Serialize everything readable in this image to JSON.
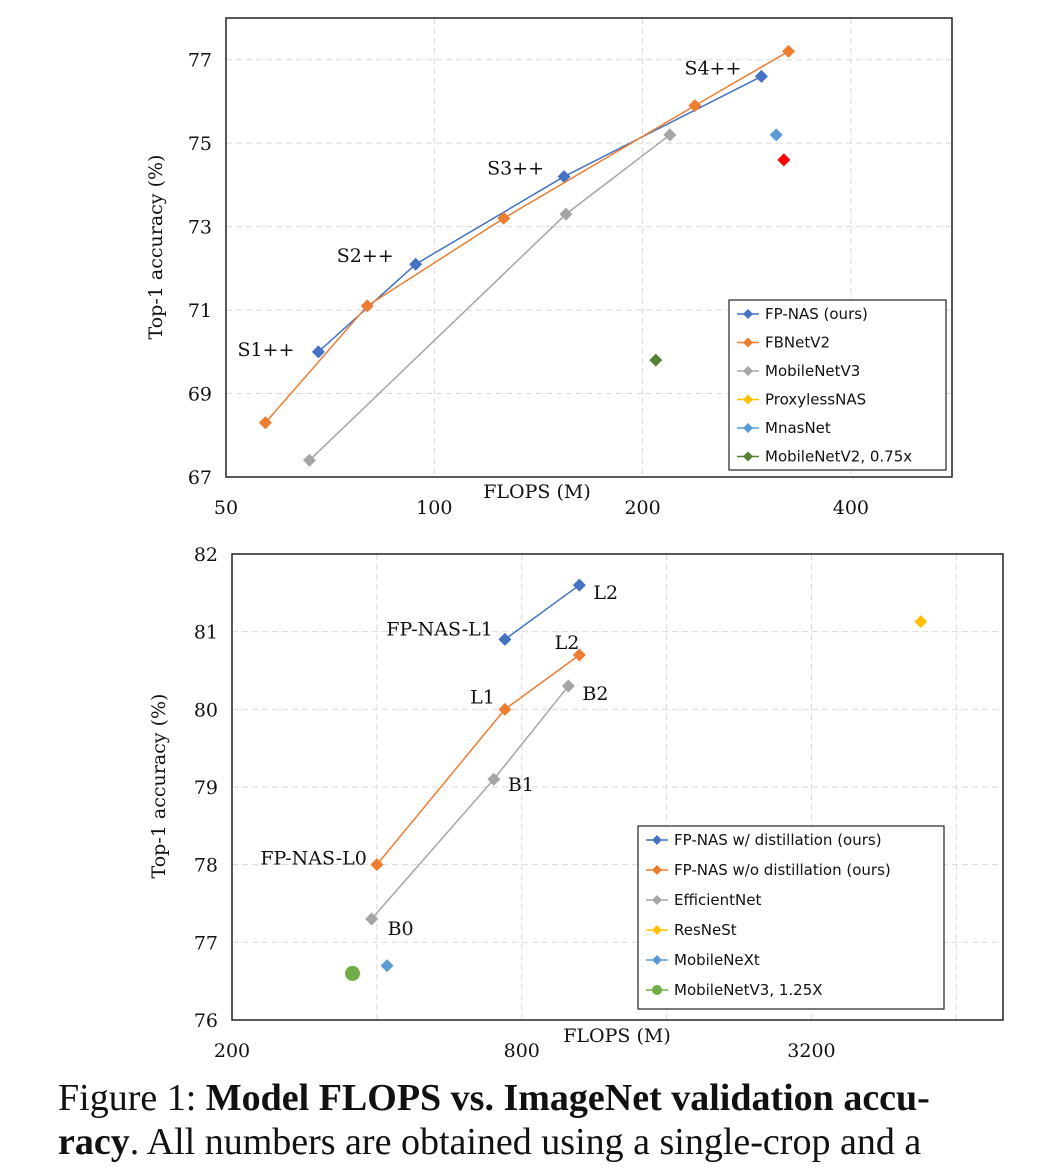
{
  "caption": {
    "prefix": "Figure 1: ",
    "bold_title": "Model FLOPS vs.  ImageNet validation accu-",
    "bold_cont": "racy",
    "rest_line2": ".  All numbers are obtained using a single-crop and a"
  },
  "chart_data": [
    {
      "type": "line",
      "xscale": "log",
      "xlabel": "FLOPS (M)",
      "ylabel": "Top-1 accuracy (%)",
      "xlim": [
        50,
        560
      ],
      "ylim": [
        67,
        78
      ],
      "xticks": [
        50,
        100,
        200,
        400
      ],
      "yticks": [
        67,
        69,
        71,
        73,
        75,
        77
      ],
      "grid": true,
      "legend_position": "bottom-right",
      "series": [
        {
          "name": "FP-NAS (ours)",
          "color": "#4472C4",
          "line": true,
          "x": [
            68,
            94,
            154,
            297
          ],
          "y": [
            70.0,
            72.1,
            74.2,
            76.6
          ],
          "labels": [
            "S1++",
            "S2++",
            "S3++",
            "S4++"
          ]
        },
        {
          "name": "FBNetV2",
          "color": "#ED7D31",
          "line": true,
          "x": [
            57,
            80,
            126,
            238,
            325
          ],
          "y": [
            68.3,
            71.1,
            73.2,
            75.9,
            77.2
          ]
        },
        {
          "name": "MobileNetV3",
          "color": "#A5A5A5",
          "line": true,
          "x": [
            66,
            155,
            219
          ],
          "y": [
            67.4,
            73.3,
            75.2
          ]
        },
        {
          "name": "ProxylessNAS",
          "color": "#FF0000",
          "line": false,
          "x": [
            320
          ],
          "y": [
            74.6
          ]
        },
        {
          "name": "MnasNet",
          "color": "#5B9BD5",
          "line": false,
          "x": [
            312
          ],
          "y": [
            75.2
          ]
        },
        {
          "name": "MobileNetV2, 0.75x",
          "color": "#548235",
          "line": false,
          "x": [
            209
          ],
          "y": [
            69.8
          ]
        }
      ],
      "legend_colors": [
        "#4472C4",
        "#ED7D31",
        "#A5A5A5",
        "#FFC000",
        "#5B9BD5",
        "#548235"
      ]
    },
    {
      "type": "line",
      "xscale": "log",
      "xlabel": "FLOPS (M)",
      "ylabel": "Top-1 accuracy (%)",
      "xlim": [
        200,
        8000
      ],
      "ylim": [
        76,
        82
      ],
      "xticks": [
        200,
        800,
        3200
      ],
      "yticks": [
        76,
        77,
        78,
        79,
        80,
        81,
        82
      ],
      "grid": true,
      "legend_position": "bottom-right",
      "series": [
        {
          "name": "FP-NAS  w/ distillation (ours)",
          "color": "#4472C4",
          "line": true,
          "marker": "diamond",
          "x": [
            738,
            1054
          ],
          "y": [
            80.9,
            81.6
          ],
          "labels": [
            "FP-NAS-L1",
            "L2"
          ]
        },
        {
          "name": "FP-NAS w/o distillation  (ours)",
          "color": "#ED7D31",
          "line": true,
          "marker": "diamond",
          "x": [
            400,
            738,
            1054
          ],
          "y": [
            78.0,
            80.0,
            80.7
          ],
          "labels": [
            "FP-NAS-L0",
            "L1",
            "L2"
          ]
        },
        {
          "name": "EfficientNet",
          "color": "#A5A5A5",
          "line": true,
          "marker": "diamond",
          "x": [
            390,
            700,
            1000
          ],
          "y": [
            77.3,
            79.1,
            80.3
          ],
          "labels": [
            "B0",
            "B1",
            "B2"
          ]
        },
        {
          "name": "ResNeSt",
          "color": "#FFC000",
          "line": false,
          "marker": "diamond",
          "x": [
            5400
          ],
          "y": [
            81.13
          ]
        },
        {
          "name": "MobileNeXt",
          "color": "#5B9BD5",
          "line": false,
          "marker": "diamond",
          "x": [
            420
          ],
          "y": [
            76.7
          ]
        },
        {
          "name": "MobileNetV3, 1.25X",
          "color": "#70AD47",
          "line": false,
          "marker": "circle",
          "x": [
            356
          ],
          "y": [
            76.6
          ]
        }
      ]
    }
  ]
}
